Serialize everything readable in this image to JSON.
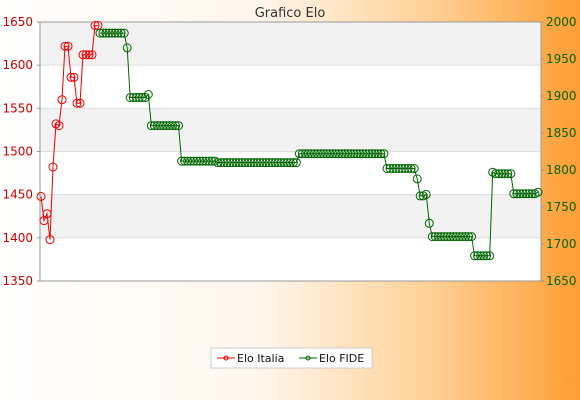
{
  "chart_data": {
    "type": "line",
    "title": "Grafico Elo",
    "xlabel": "",
    "ylabel": "",
    "ylim_left": [
      1350,
      1650
    ],
    "ylim_right": [
      1650,
      2000
    ],
    "yticks_left": [
      1350,
      1400,
      1450,
      1500,
      1550,
      1600,
      1650
    ],
    "yticks_right": [
      1650,
      1700,
      1750,
      1800,
      1850,
      1900,
      1950,
      2000
    ],
    "grid": true,
    "legend_position": "bottom",
    "legend": [
      "Elo Italia",
      "Elo FIDE"
    ],
    "series": [
      {
        "name": "Elo Italia",
        "axis": "left",
        "color": "#ee0000",
        "values": [
          1448,
          1420,
          1428,
          1398,
          1482,
          1532,
          1530,
          1560,
          1622,
          1622,
          1586,
          1586,
          1556,
          1556,
          1612,
          1612,
          1612,
          1612,
          1646,
          1646
        ]
      },
      {
        "name": "Elo FIDE",
        "axis": "right",
        "color": "#006600",
        "values": [
          1985,
          1985,
          1985,
          1985,
          1985,
          1985,
          1985,
          1985,
          1985,
          1965,
          1898,
          1898,
          1898,
          1898,
          1898,
          1898,
          1902,
          1860,
          1860,
          1860,
          1860,
          1860,
          1860,
          1860,
          1860,
          1860,
          1860,
          1812,
          1812,
          1812,
          1812,
          1812,
          1812,
          1812,
          1812,
          1812,
          1812,
          1812,
          1812,
          1810,
          1810,
          1810,
          1810,
          1810,
          1810,
          1810,
          1810,
          1810,
          1810,
          1810,
          1810,
          1810,
          1810,
          1810,
          1810,
          1810,
          1810,
          1810,
          1810,
          1810,
          1810,
          1810,
          1810,
          1810,
          1810,
          1810,
          1822,
          1822,
          1822,
          1822,
          1822,
          1822,
          1822,
          1822,
          1822,
          1822,
          1822,
          1822,
          1822,
          1822,
          1822,
          1822,
          1822,
          1822,
          1822,
          1822,
          1822,
          1822,
          1822,
          1822,
          1822,
          1822,
          1822,
          1822,
          1822,
          1802,
          1802,
          1802,
          1802,
          1802,
          1802,
          1802,
          1802,
          1802,
          1802,
          1788,
          1765,
          1765,
          1767,
          1728,
          1710,
          1710,
          1710,
          1710,
          1710,
          1710,
          1710,
          1710,
          1710,
          1710,
          1710,
          1710,
          1710,
          1710,
          1684,
          1684,
          1684,
          1684,
          1684,
          1684,
          1797,
          1795,
          1795,
          1795,
          1795,
          1795,
          1795,
          1768,
          1768,
          1768,
          1768,
          1768,
          1768,
          1768,
          1768,
          1770
        ]
      }
    ]
  }
}
